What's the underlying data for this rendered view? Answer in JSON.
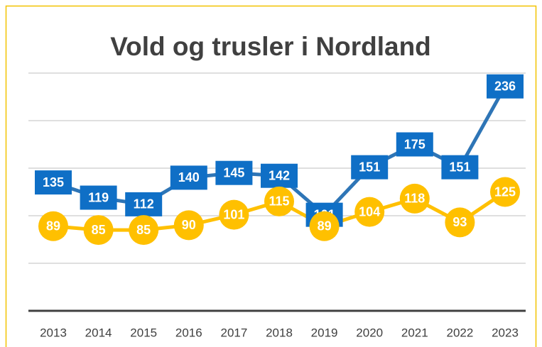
{
  "chart_data": {
    "type": "line",
    "title": "Vold og trusler i Nordland",
    "categories": [
      "2013",
      "2014",
      "2015",
      "2016",
      "2017",
      "2018",
      "2019",
      "2020",
      "2021",
      "2022",
      "2023"
    ],
    "series": [
      {
        "color": "#2e75b6",
        "values": [
          135,
          119,
          112,
          140,
          145,
          142,
          101,
          151,
          175,
          151,
          236
        ]
      },
      {
        "color": "#ffc000",
        "values": [
          89,
          85,
          85,
          90,
          101,
          115,
          89,
          104,
          118,
          93,
          125
        ]
      }
    ],
    "ylim": [
      0,
      250
    ],
    "yticks": [
      0,
      50,
      100,
      150,
      200,
      250
    ],
    "grid": true
  }
}
